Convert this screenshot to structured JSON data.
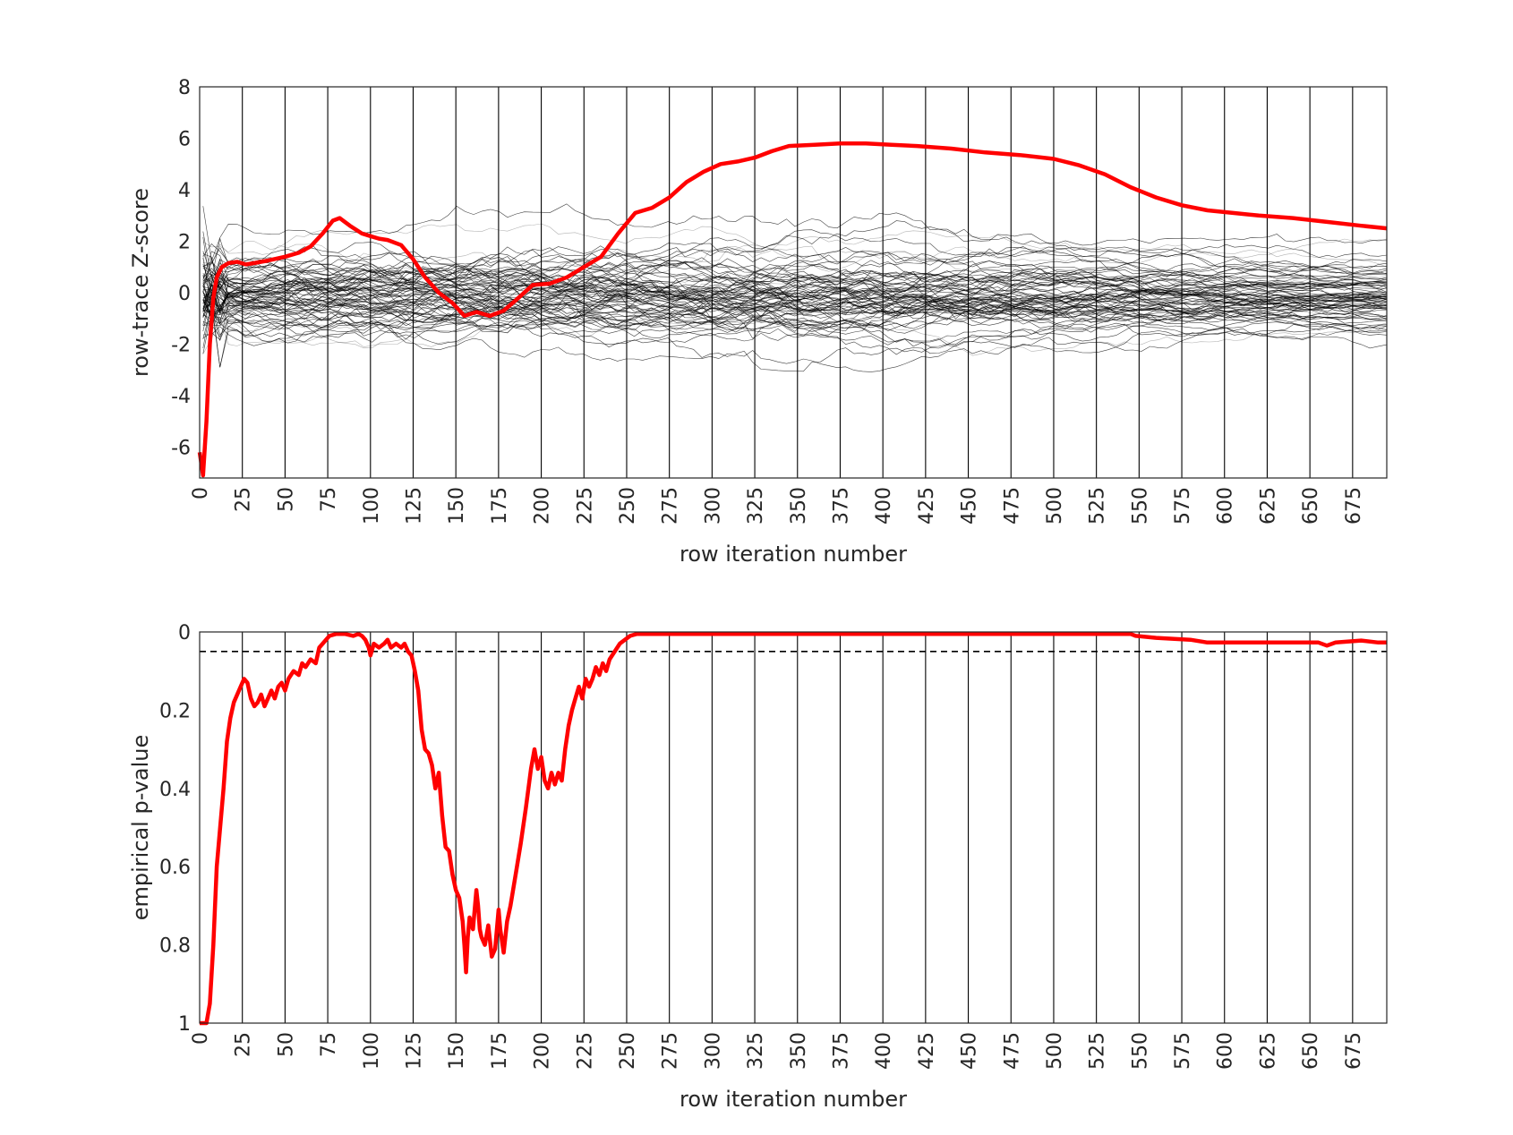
{
  "chart_data": [
    {
      "type": "line",
      "xlabel": "row iteration number",
      "ylabel": "row-trace Z-score",
      "xlim": [
        0,
        695
      ],
      "ylim": [
        -7.2,
        8
      ],
      "x_ticks": [
        0,
        25,
        50,
        75,
        100,
        125,
        150,
        175,
        200,
        225,
        250,
        275,
        300,
        325,
        350,
        375,
        400,
        425,
        450,
        475,
        500,
        525,
        550,
        575,
        600,
        625,
        650,
        675
      ],
      "y_ticks": [
        -6,
        -4,
        -2,
        0,
        2,
        4,
        6,
        8
      ],
      "x_tick_labels": [
        "0",
        "25",
        "50",
        "75",
        "100",
        "125",
        "150",
        "175",
        "200",
        "225",
        "250",
        "275",
        "300",
        "325",
        "350",
        "375",
        "400",
        "425",
        "450",
        "475",
        "500",
        "525",
        "550",
        "575",
        "600",
        "625",
        "650",
        "675"
      ],
      "y_tick_labels": [
        "-6",
        "-4",
        "-2",
        "0",
        "2",
        "4",
        "6",
        "8"
      ],
      "vertical_gridlines_at": [
        25,
        50,
        75,
        100,
        125,
        150,
        175,
        200,
        225,
        250,
        275,
        300,
        325,
        350,
        375,
        400,
        425,
        450,
        475,
        500,
        525,
        550,
        575,
        600,
        625,
        650,
        675
      ],
      "highlight_series": {
        "color": "#ff0000",
        "points": [
          [
            0,
            -6.2
          ],
          [
            2,
            -7.1
          ],
          [
            4,
            -5
          ],
          [
            6,
            -2
          ],
          [
            8,
            -0.2
          ],
          [
            10,
            0.6
          ],
          [
            13,
            1
          ],
          [
            17,
            1.15
          ],
          [
            22,
            1.2
          ],
          [
            27,
            1.1
          ],
          [
            32,
            1.15
          ],
          [
            40,
            1.25
          ],
          [
            50,
            1.4
          ],
          [
            58,
            1.55
          ],
          [
            65,
            1.8
          ],
          [
            72,
            2.3
          ],
          [
            78,
            2.8
          ],
          [
            82,
            2.9
          ],
          [
            88,
            2.6
          ],
          [
            95,
            2.3
          ],
          [
            100,
            2.2
          ],
          [
            105,
            2.1
          ],
          [
            110,
            2.05
          ],
          [
            118,
            1.85
          ],
          [
            125,
            1.3
          ],
          [
            132,
            0.6
          ],
          [
            140,
            0
          ],
          [
            148,
            -0.4
          ],
          [
            155,
            -0.9
          ],
          [
            162,
            -0.75
          ],
          [
            170,
            -0.9
          ],
          [
            178,
            -0.7
          ],
          [
            185,
            -0.3
          ],
          [
            195,
            0.3
          ],
          [
            205,
            0.35
          ],
          [
            215,
            0.6
          ],
          [
            225,
            1
          ],
          [
            235,
            1.4
          ],
          [
            245,
            2.3
          ],
          [
            255,
            3.1
          ],
          [
            265,
            3.3
          ],
          [
            275,
            3.7
          ],
          [
            285,
            4.3
          ],
          [
            295,
            4.7
          ],
          [
            305,
            5
          ],
          [
            315,
            5.1
          ],
          [
            325,
            5.25
          ],
          [
            335,
            5.5
          ],
          [
            345,
            5.7
          ],
          [
            360,
            5.75
          ],
          [
            375,
            5.8
          ],
          [
            390,
            5.8
          ],
          [
            405,
            5.75
          ],
          [
            420,
            5.7
          ],
          [
            440,
            5.6
          ],
          [
            460,
            5.45
          ],
          [
            480,
            5.35
          ],
          [
            500,
            5.2
          ],
          [
            515,
            4.95
          ],
          [
            530,
            4.6
          ],
          [
            545,
            4.1
          ],
          [
            560,
            3.7
          ],
          [
            575,
            3.4
          ],
          [
            590,
            3.2
          ],
          [
            605,
            3.1
          ],
          [
            620,
            3.0
          ],
          [
            640,
            2.9
          ],
          [
            660,
            2.75
          ],
          [
            680,
            2.6
          ],
          [
            695,
            2.5
          ]
        ]
      },
      "null_traces": {
        "color": "#000000",
        "count": 80
      }
    },
    {
      "type": "line",
      "xlabel": "row iteration number",
      "ylabel": "empirical p-value",
      "xlim": [
        0,
        695
      ],
      "ylim": [
        0,
        1
      ],
      "y_reversed": true,
      "x_ticks": [
        0,
        25,
        50,
        75,
        100,
        125,
        150,
        175,
        200,
        225,
        250,
        275,
        300,
        325,
        350,
        375,
        400,
        425,
        450,
        475,
        500,
        525,
        550,
        575,
        600,
        625,
        650,
        675
      ],
      "y_ticks": [
        0,
        0.2,
        0.4,
        0.6,
        0.8,
        1
      ],
      "x_tick_labels": [
        "0",
        "25",
        "50",
        "75",
        "100",
        "125",
        "150",
        "175",
        "200",
        "225",
        "250",
        "275",
        "300",
        "325",
        "350",
        "375",
        "400",
        "425",
        "450",
        "475",
        "500",
        "525",
        "550",
        "575",
        "600",
        "625",
        "650",
        "675"
      ],
      "y_tick_labels": [
        "0",
        "0.2",
        "0.4",
        "0.6",
        "0.8",
        "1"
      ],
      "vertical_gridlines_at": [
        25,
        50,
        75,
        100,
        125,
        150,
        175,
        200,
        225,
        250,
        275,
        300,
        325,
        350,
        375,
        400,
        425,
        450,
        475,
        500,
        525,
        550,
        575,
        600,
        625,
        650,
        675
      ],
      "threshold": 0.05,
      "highlight_series": {
        "color": "#ff0000",
        "points": [
          [
            0,
            1
          ],
          [
            4,
            1
          ],
          [
            6,
            0.95
          ],
          [
            8,
            0.8
          ],
          [
            10,
            0.6
          ],
          [
            12,
            0.5
          ],
          [
            14,
            0.4
          ],
          [
            16,
            0.28
          ],
          [
            18,
            0.22
          ],
          [
            20,
            0.18
          ],
          [
            23,
            0.15
          ],
          [
            26,
            0.12
          ],
          [
            28,
            0.13
          ],
          [
            30,
            0.17
          ],
          [
            32,
            0.19
          ],
          [
            34,
            0.18
          ],
          [
            36,
            0.16
          ],
          [
            38,
            0.19
          ],
          [
            40,
            0.17
          ],
          [
            42,
            0.15
          ],
          [
            44,
            0.17
          ],
          [
            46,
            0.14
          ],
          [
            48,
            0.13
          ],
          [
            50,
            0.15
          ],
          [
            52,
            0.12
          ],
          [
            55,
            0.1
          ],
          [
            58,
            0.11
          ],
          [
            60,
            0.08
          ],
          [
            62,
            0.09
          ],
          [
            65,
            0.07
          ],
          [
            68,
            0.08
          ],
          [
            70,
            0.04
          ],
          [
            72,
            0.03
          ],
          [
            74,
            0.02
          ],
          [
            76,
            0.01
          ],
          [
            80,
            0.005
          ],
          [
            85,
            0.005
          ],
          [
            90,
            0.01
          ],
          [
            93,
            0.005
          ],
          [
            95,
            0.01
          ],
          [
            97,
            0.02
          ],
          [
            99,
            0.04
          ],
          [
            100,
            0.06
          ],
          [
            102,
            0.03
          ],
          [
            105,
            0.04
          ],
          [
            108,
            0.03
          ],
          [
            110,
            0.02
          ],
          [
            112,
            0.04
          ],
          [
            115,
            0.03
          ],
          [
            118,
            0.04
          ],
          [
            120,
            0.03
          ],
          [
            122,
            0.05
          ],
          [
            124,
            0.06
          ],
          [
            126,
            0.1
          ],
          [
            128,
            0.15
          ],
          [
            130,
            0.25
          ],
          [
            132,
            0.3
          ],
          [
            134,
            0.31
          ],
          [
            136,
            0.34
          ],
          [
            138,
            0.4
          ],
          [
            140,
            0.36
          ],
          [
            142,
            0.47
          ],
          [
            144,
            0.55
          ],
          [
            146,
            0.56
          ],
          [
            148,
            0.62
          ],
          [
            150,
            0.66
          ],
          [
            152,
            0.68
          ],
          [
            154,
            0.74
          ],
          [
            155,
            0.8
          ],
          [
            156,
            0.87
          ],
          [
            157,
            0.78
          ],
          [
            158,
            0.73
          ],
          [
            160,
            0.76
          ],
          [
            162,
            0.66
          ],
          [
            163,
            0.7
          ],
          [
            164,
            0.76
          ],
          [
            165,
            0.78
          ],
          [
            167,
            0.8
          ],
          [
            169,
            0.75
          ],
          [
            171,
            0.83
          ],
          [
            173,
            0.81
          ],
          [
            175,
            0.71
          ],
          [
            176,
            0.76
          ],
          [
            178,
            0.82
          ],
          [
            180,
            0.74
          ],
          [
            182,
            0.7
          ],
          [
            185,
            0.62
          ],
          [
            188,
            0.54
          ],
          [
            191,
            0.45
          ],
          [
            194,
            0.35
          ],
          [
            196,
            0.3
          ],
          [
            198,
            0.35
          ],
          [
            200,
            0.32
          ],
          [
            202,
            0.38
          ],
          [
            204,
            0.4
          ],
          [
            206,
            0.36
          ],
          [
            208,
            0.39
          ],
          [
            210,
            0.36
          ],
          [
            212,
            0.38
          ],
          [
            214,
            0.3
          ],
          [
            216,
            0.24
          ],
          [
            218,
            0.2
          ],
          [
            220,
            0.17
          ],
          [
            222,
            0.14
          ],
          [
            224,
            0.17
          ],
          [
            226,
            0.12
          ],
          [
            228,
            0.14
          ],
          [
            230,
            0.12
          ],
          [
            232,
            0.09
          ],
          [
            234,
            0.11
          ],
          [
            236,
            0.08
          ],
          [
            238,
            0.1
          ],
          [
            240,
            0.07
          ],
          [
            243,
            0.05
          ],
          [
            246,
            0.03
          ],
          [
            249,
            0.02
          ],
          [
            252,
            0.01
          ],
          [
            256,
            0.005
          ],
          [
            300,
            0.005
          ],
          [
            400,
            0.005
          ],
          [
            500,
            0.005
          ],
          [
            545,
            0.005
          ],
          [
            548,
            0.01
          ],
          [
            560,
            0.015
          ],
          [
            580,
            0.02
          ],
          [
            590,
            0.027
          ],
          [
            640,
            0.027
          ],
          [
            655,
            0.027
          ],
          [
            660,
            0.035
          ],
          [
            665,
            0.027
          ],
          [
            680,
            0.022
          ],
          [
            690,
            0.027
          ],
          [
            695,
            0.027
          ]
        ]
      }
    }
  ]
}
